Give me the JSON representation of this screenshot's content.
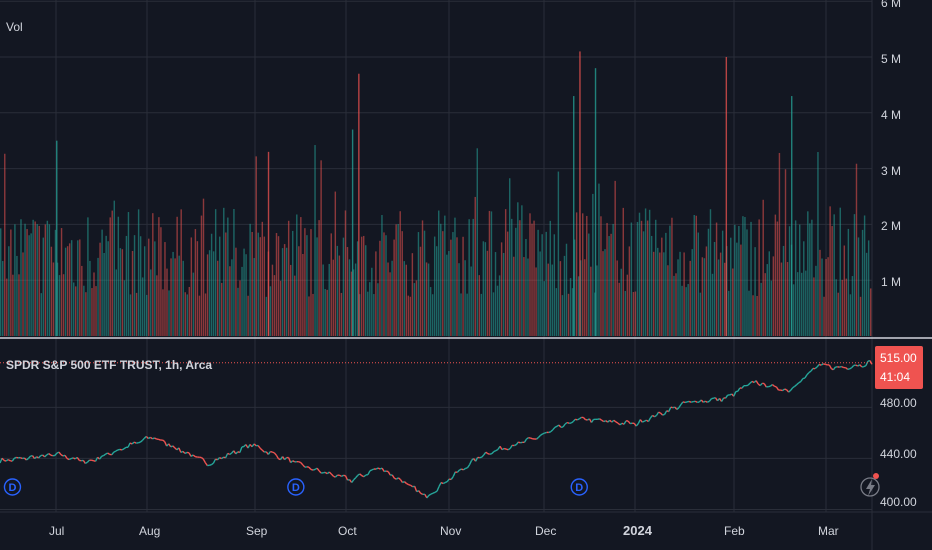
{
  "colors": {
    "background": "#131722",
    "grid": "#2a2e39",
    "up": "#26a69a",
    "down": "#ef5350",
    "text": "#d1d4dc",
    "dividend": "#2962ff",
    "separator": "#d1d4dc"
  },
  "volume_pane": {
    "label": "Vol",
    "scale_labels": [
      "6 M",
      "5 M",
      "4 M",
      "3 M",
      "2 M",
      "1 M"
    ]
  },
  "price_pane": {
    "legend": "SPDR S&P 500 ETF TRUST, 1h, Arca",
    "scale_labels": [
      "480.00",
      "440.00",
      "400.00"
    ],
    "last_price": "515.00",
    "countdown": "41:04",
    "dividend_marker": "D",
    "event_icon": "lightning-icon"
  },
  "time_axis": {
    "labels": [
      "Jul",
      "Aug",
      "Sep",
      "Oct",
      "Nov",
      "Dec",
      "2024",
      "Feb",
      "Mar"
    ]
  },
  "chart_data": [
    {
      "type": "bar",
      "title": "Vol",
      "ylim": [
        0,
        6000000
      ],
      "ytick_labels": [
        "1 M",
        "2 M",
        "3 M",
        "4 M",
        "5 M",
        "6 M"
      ],
      "x_range": [
        "2023-06-12",
        "2024-03-18"
      ],
      "spikes": [
        {
          "x": "2023-06-30",
          "value": 3500000
        },
        {
          "x": "2023-09-06",
          "value": 3300000
        },
        {
          "x": "2023-10-03",
          "value": 3700000
        },
        {
          "x": "2023-10-05",
          "value": 4700000
        },
        {
          "x": "2023-12-13",
          "value": 4300000
        },
        {
          "x": "2023-12-15",
          "value": 5100000
        },
        {
          "x": "2023-12-20",
          "value": 4800000
        },
        {
          "x": "2024-01-31",
          "value": 5000000
        },
        {
          "x": "2024-02-21",
          "value": 4300000
        }
      ]
    },
    {
      "type": "line",
      "title": "SPDR S&P 500 ETF TRUST, 1h, Arca",
      "ylim": [
        398,
        525
      ],
      "ytick_labels": [
        "400.00",
        "440.00",
        "480.00"
      ],
      "last_value": 515.0,
      "x": [
        "2023-06-12",
        "2023-07-01",
        "2023-07-10",
        "2023-07-31",
        "2023-08-18",
        "2023-09-01",
        "2023-09-07",
        "2023-09-21",
        "2023-10-03",
        "2023-10-12",
        "2023-10-27",
        "2023-11-01",
        "2023-11-14",
        "2023-11-30",
        "2023-12-15",
        "2024-01-02",
        "2024-01-19",
        "2024-01-31",
        "2024-02-09",
        "2024-02-20",
        "2024-03-01",
        "2024-03-08",
        "2024-03-18"
      ],
      "values": [
        438,
        443,
        437,
        457,
        436,
        451,
        444,
        431,
        423,
        433,
        410,
        420,
        443,
        455,
        471,
        467,
        484,
        487,
        500,
        493,
        513,
        511,
        515
      ],
      "dividend_dates": [
        "2023-06-16",
        "2023-09-15",
        "2023-12-15"
      ]
    }
  ]
}
